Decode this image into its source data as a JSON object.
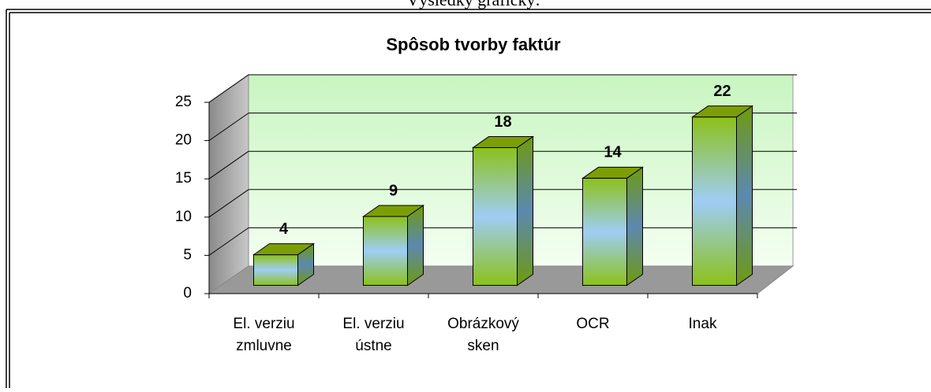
{
  "caption": "Výsledky graficky:",
  "chart_data": {
    "type": "bar",
    "title": "Spôsob tvorby faktúr",
    "categories": [
      "El. verziu\nzmluvne",
      "El. verziu\nústne",
      "Obrázkový\nsken",
      "OCR",
      "Inak"
    ],
    "values": [
      4,
      9,
      18,
      14,
      22
    ],
    "ylim": [
      0,
      25
    ],
    "yticks": [
      0,
      5,
      10,
      15,
      20,
      25
    ],
    "grid": true
  }
}
